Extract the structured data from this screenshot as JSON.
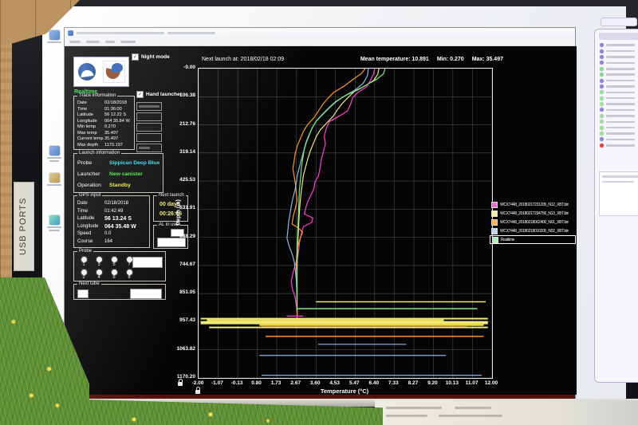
{
  "monitor": {
    "usb_ports_label": "USB PORTS"
  },
  "app": {
    "header": {
      "night_mode": "Night mode",
      "hand_launcher": "Hand launcher",
      "realtime": "Realtime"
    },
    "trace_info": {
      "title": "Trace information",
      "rows": [
        {
          "label": "Date",
          "value": "02/18/2018"
        },
        {
          "label": "Time",
          "value": "01:36:00"
        },
        {
          "label": "Latitude",
          "value": "56 12.22 S"
        },
        {
          "label": "Longitude",
          "value": "064 35.84 W"
        },
        {
          "label": "Min temp",
          "value": "0.270"
        },
        {
          "label": "Max temp",
          "value": "35.497"
        },
        {
          "label": "Current temp",
          "value": "35.497"
        },
        {
          "label": "Max depth",
          "value": "1170.197"
        }
      ]
    },
    "launch_info": {
      "title": "Launch information",
      "rows": [
        {
          "label": "Probe",
          "value": "Sippican Deep Blue",
          "color": "#35d5e8"
        },
        {
          "label": "Launcher",
          "value": "New canister",
          "color": "#46e846"
        },
        {
          "label": "Operation",
          "value": "Standby",
          "color": "#f2e23c"
        }
      ]
    },
    "gps_input": {
      "title": "GPS input",
      "rows": [
        {
          "label": "Date",
          "value": "02/18/2018"
        },
        {
          "label": "Time",
          "value": "01:42:49"
        },
        {
          "label": "Latitude",
          "value": "56 13.24 S",
          "bold": true
        },
        {
          "label": "Longitude",
          "value": "064 35.48 W",
          "bold": true
        },
        {
          "label": "Speed",
          "value": "0.0"
        },
        {
          "label": "Course",
          "value": "164"
        }
      ]
    },
    "next_launch_panel": {
      "title": "Next launch",
      "days": "00 days",
      "countdown": "00:26:46"
    },
    "al_in_use": {
      "title": "AL in use"
    },
    "probe_panel": {
      "title": "Probe",
      "top_row": [
        "1",
        "3",
        "5",
        "7"
      ],
      "bottom_row": [
        "2",
        "4",
        "6",
        "8"
      ]
    },
    "next_tube": {
      "title": "Next tube"
    },
    "plot_header": {
      "next_launch_at": "Next launch at: 2018/02/18 02:09",
      "mean": "Mean temperature: 10.891",
      "min": "Min: 0.270",
      "max": "Max: 35.497"
    }
  },
  "right_panel": {
    "dots": [
      "#8f84d8",
      "#8f84d8",
      "#8f84d8",
      "#8f84d8",
      "#8bd88f",
      "#8bd88f",
      "#8f84d8",
      "#8f84d8",
      "#9ce09c",
      "#9ce09c",
      "#9ce09c",
      "#8f84d8",
      "#9ce09c",
      "#9ce09c",
      "#9ce09c",
      "#9ce09c",
      "#8f84d8",
      "#e23c3c"
    ]
  },
  "chart_data": {
    "type": "line",
    "title": "",
    "xlabel": "Temperature (°C)",
    "ylabel": "Depth (m)",
    "xlim": [
      -2.0,
      12.0
    ],
    "ylim": [
      0.0,
      1170.2
    ],
    "y_axis_inverted": true,
    "grid": true,
    "legend_position": "right",
    "x_ticks": [
      "-2.00",
      "-1.07",
      "-0.13",
      "0.80",
      "1.73",
      "2.67",
      "3.60",
      "4.53",
      "5.47",
      "6.40",
      "7.33",
      "8.27",
      "9.20",
      "10.13",
      "11.07",
      "12.00"
    ],
    "y_ticks": [
      "-0.00",
      "106.38",
      "212.76",
      "319.14",
      "425.53",
      "531.91",
      "638.29",
      "744.67",
      "851.05",
      "957.43",
      "1063.82",
      "1170.20"
    ],
    "series": [
      {
        "name": "WCX7448_20180217231205_N12_XBT.bin",
        "color": "#ff3ed8",
        "swatch": "#f06ad8",
        "points": [
          [
            6.4,
            0
          ],
          [
            6.35,
            20
          ],
          [
            6.2,
            45
          ],
          [
            6.0,
            70
          ],
          [
            5.6,
            90
          ],
          [
            5.35,
            110
          ],
          [
            5.25,
            135
          ],
          [
            5.1,
            160
          ],
          [
            4.7,
            180
          ],
          [
            4.25,
            200
          ],
          [
            4.1,
            225
          ],
          [
            4.0,
            255
          ],
          [
            4.05,
            285
          ],
          [
            3.95,
            315
          ],
          [
            3.85,
            345
          ],
          [
            3.8,
            375
          ],
          [
            3.72,
            405
          ],
          [
            3.55,
            430
          ],
          [
            3.5,
            455
          ],
          [
            3.35,
            480
          ],
          [
            3.2,
            505
          ],
          [
            3.1,
            530
          ],
          [
            3.05,
            550
          ],
          [
            3.45,
            565
          ],
          [
            3.4,
            582
          ],
          [
            3.0,
            598
          ],
          [
            2.9,
            625
          ],
          [
            2.82,
            655
          ],
          [
            2.78,
            685
          ],
          [
            2.72,
            715
          ],
          [
            2.6,
            745
          ],
          [
            2.5,
            775
          ],
          [
            2.42,
            805
          ],
          [
            2.48,
            835
          ],
          [
            2.6,
            862
          ],
          [
            2.66,
            895
          ],
          [
            2.7,
            925
          ],
          [
            2.72,
            955
          ]
        ]
      },
      {
        "name": "WCX7448_20180217234756_N13_XBT.bin",
        "color": "#ece97e",
        "swatch": "#f2efa0",
        "points": [
          [
            6.6,
            0
          ],
          [
            6.55,
            22
          ],
          [
            6.35,
            45
          ],
          [
            5.95,
            65
          ],
          [
            5.45,
            85
          ],
          [
            5.15,
            108
          ],
          [
            4.85,
            132
          ],
          [
            4.62,
            156
          ],
          [
            4.42,
            180
          ],
          [
            4.12,
            205
          ],
          [
            3.82,
            230
          ],
          [
            3.62,
            256
          ],
          [
            3.47,
            284
          ],
          [
            3.32,
            314
          ],
          [
            3.2,
            344
          ],
          [
            3.1,
            374
          ],
          [
            3.0,
            404
          ],
          [
            2.95,
            434
          ],
          [
            2.9,
            464
          ],
          [
            2.86,
            496
          ],
          [
            2.82,
            530
          ],
          [
            2.79,
            568
          ],
          [
            2.76,
            618
          ],
          [
            2.73,
            668
          ],
          [
            2.71,
            718
          ],
          [
            2.7,
            768
          ],
          [
            2.7,
            818
          ],
          [
            2.7,
            866
          ]
        ]
      },
      {
        "name": "WCX7448_20180218002406_N01_XBT.bin",
        "color": "#ff9522",
        "swatch": "#ffb347",
        "points": [
          [
            5.95,
            0
          ],
          [
            5.75,
            20
          ],
          [
            5.35,
            42
          ],
          [
            4.95,
            66
          ],
          [
            4.45,
            90
          ],
          [
            4.18,
            112
          ],
          [
            3.92,
            136
          ],
          [
            3.72,
            160
          ],
          [
            3.5,
            186
          ],
          [
            3.2,
            212
          ],
          [
            3.0,
            238
          ],
          [
            2.86,
            264
          ],
          [
            2.72,
            290
          ],
          [
            2.62,
            318
          ],
          [
            2.56,
            348
          ],
          [
            2.5,
            378
          ],
          [
            2.56,
            408
          ],
          [
            2.62,
            438
          ],
          [
            2.66,
            468
          ],
          [
            2.7,
            498
          ],
          [
            2.62,
            528
          ],
          [
            2.52,
            558
          ],
          [
            2.46,
            588
          ],
          [
            2.76,
            603
          ],
          [
            2.96,
            618
          ],
          [
            2.82,
            648
          ],
          [
            2.72,
            678
          ],
          [
            2.68,
            710
          ],
          [
            2.66,
            742
          ],
          [
            2.68,
            782
          ],
          [
            2.7,
            832
          ],
          [
            2.7,
            882
          ],
          [
            2.71,
            938
          ]
        ]
      },
      {
        "name": "WCX7448_20180218010205_N02_XBT.bin",
        "color": "#8cb6ea",
        "swatch": "#bcd6f2",
        "points": [
          [
            6.1,
            0
          ],
          [
            6.05,
            28
          ],
          [
            5.85,
            56
          ],
          [
            5.45,
            82
          ],
          [
            4.95,
            104
          ],
          [
            4.55,
            126
          ],
          [
            4.22,
            150
          ],
          [
            3.92,
            174
          ],
          [
            3.62,
            198
          ],
          [
            3.42,
            224
          ],
          [
            3.27,
            250
          ],
          [
            3.12,
            280
          ],
          [
            3.02,
            310
          ],
          [
            2.92,
            340
          ],
          [
            2.82,
            370
          ],
          [
            2.72,
            400
          ],
          [
            2.66,
            430
          ],
          [
            2.6,
            460
          ],
          [
            2.5,
            490
          ],
          [
            2.42,
            520
          ],
          [
            2.36,
            550
          ],
          [
            2.3,
            580
          ],
          [
            2.26,
            610
          ],
          [
            2.22,
            642
          ],
          [
            2.32,
            672
          ],
          [
            2.46,
            700
          ],
          [
            2.56,
            730
          ],
          [
            2.62,
            762
          ],
          [
            2.66,
            802
          ],
          [
            2.69,
            852
          ],
          [
            2.7,
            900
          ]
        ]
      },
      {
        "name": "Realtime",
        "color": "#7ee87e",
        "swatch": "#a9f2b1",
        "points": [
          [
            6.9,
            0
          ],
          [
            6.82,
            20
          ],
          [
            6.5,
            40
          ],
          [
            6.05,
            60
          ],
          [
            5.62,
            80
          ],
          [
            5.05,
            100
          ],
          [
            4.55,
            124
          ],
          [
            4.22,
            148
          ],
          [
            3.92,
            172
          ],
          [
            3.62,
            198
          ],
          [
            3.42,
            224
          ],
          [
            3.27,
            254
          ],
          [
            3.12,
            284
          ],
          [
            3.02,
            314
          ],
          [
            2.96,
            344
          ],
          [
            2.9,
            380
          ],
          [
            2.86,
            420
          ],
          [
            2.81,
            460
          ],
          [
            2.79,
            500
          ],
          [
            2.77,
            540
          ],
          [
            2.75,
            580
          ],
          [
            2.73,
            620
          ],
          [
            2.71,
            660
          ],
          [
            2.7,
            700
          ],
          [
            2.7,
            740
          ],
          [
            2.7,
            790
          ],
          [
            2.7,
            840
          ],
          [
            2.7,
            890
          ],
          [
            2.7,
            918
          ]
        ]
      }
    ],
    "bottom_spike_lines": [
      {
        "color": "#efe87a",
        "depth": 882,
        "t1": 3.6,
        "t2": 11.7,
        "w": 1.5
      },
      {
        "color": "#7ee87e",
        "depth": 908,
        "t1": 2.72,
        "t2": 11.3,
        "w": 1.5
      },
      {
        "color": "#ff3ed8",
        "depth": 936,
        "t1": 2.2,
        "t2": 3.0,
        "w": 1.2
      },
      {
        "color": "#efe87a",
        "depth": 946,
        "t1": -1.9,
        "t2": 11.8,
        "w": 2
      },
      {
        "color": "#e8d84a",
        "depth": 953,
        "t1": -1.6,
        "t2": 9.7,
        "w": 3
      },
      {
        "color": "#d8d8d8",
        "depth": 957,
        "t1": 0.5,
        "t2": 4.0,
        "w": 1
      },
      {
        "color": "#efe87a",
        "depth": 961,
        "t1": -1.9,
        "t2": 11.8,
        "w": 4
      },
      {
        "color": "#e8d84a",
        "depth": 969,
        "t1": 0.9,
        "t2": 11.6,
        "w": 3
      },
      {
        "color": "#b5452a",
        "depth": 976,
        "t1": 1.0,
        "t2": 10.8,
        "w": 1.5
      },
      {
        "color": "#efe87a",
        "depth": 979,
        "t1": -1.5,
        "t2": 11.8,
        "w": 2
      },
      {
        "color": "#ff9522",
        "depth": 1013,
        "t1": 1.2,
        "t2": 11.6,
        "w": 1.5
      },
      {
        "color": "#8cb6ea",
        "depth": 1043,
        "t1": 3.7,
        "t2": 7.9,
        "w": 1.2
      },
      {
        "color": "#8cb6ea",
        "depth": 1085,
        "t1": 0.9,
        "t2": 9.8,
        "w": 1.2
      },
      {
        "color": "#8cb6ea",
        "depth": 1160,
        "t1": 1.0,
        "t2": 11.5,
        "w": 1.2
      }
    ]
  }
}
